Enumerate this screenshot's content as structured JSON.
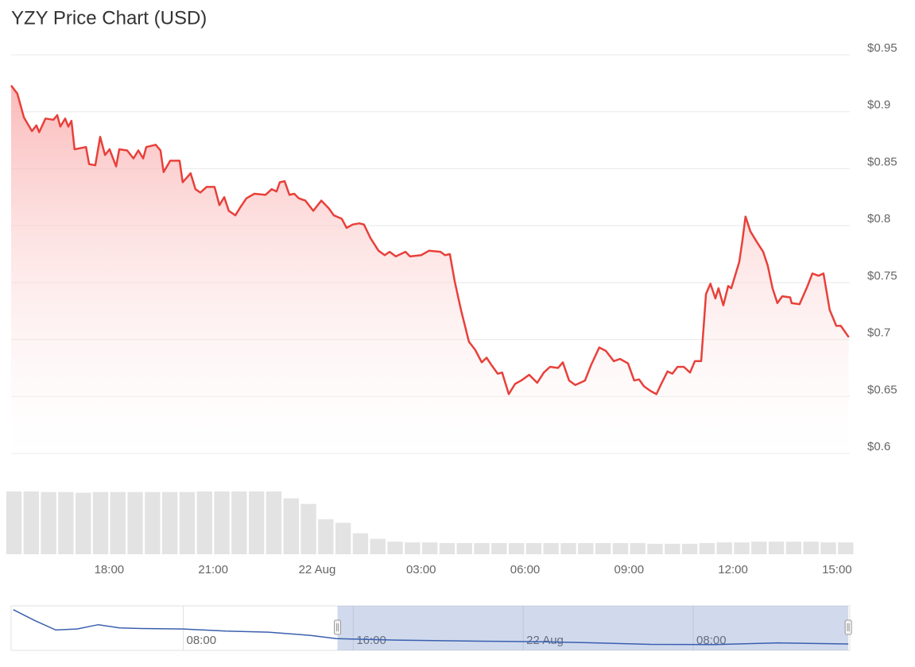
{
  "chart_data": [
    {
      "type": "line",
      "title": "YZY Price Chart (USD)",
      "x": [
        15.17,
        15.35,
        15.54,
        15.77,
        15.9,
        15.98,
        16.16,
        16.39,
        16.5,
        16.59,
        16.73,
        16.82,
        16.91,
        17.0,
        17.33,
        17.42,
        17.6,
        17.74,
        17.88,
        18.01,
        18.2,
        18.29,
        18.52,
        18.7,
        18.84,
        18.98,
        19.07,
        19.34,
        19.48,
        19.57,
        19.76,
        20.03,
        20.12,
        20.35,
        20.49,
        20.63,
        20.81,
        21.04,
        21.18,
        21.32,
        21.45,
        21.64,
        21.78,
        21.96,
        22.19,
        22.51,
        22.69,
        22.83,
        22.92,
        23.06,
        23.2,
        23.34,
        23.47,
        23.66,
        23.89,
        24.12,
        24.34,
        24.48,
        24.71,
        24.85,
        25.03,
        25.22,
        25.35,
        25.54,
        25.77,
        25.95,
        26.09,
        26.27,
        26.55,
        26.68,
        27.0,
        27.23,
        27.56,
        27.69,
        27.83,
        27.97,
        28.15,
        28.38,
        28.56,
        28.75,
        28.89,
        29.02,
        29.21,
        29.34,
        29.53,
        29.71,
        29.89,
        30.12,
        30.35,
        30.54,
        30.72,
        30.95,
        31.09,
        31.27,
        31.45,
        31.73,
        31.91,
        32.14,
        32.33,
        32.56,
        32.74,
        32.97,
        33.15,
        33.29,
        33.43,
        33.61,
        33.79,
        33.93,
        34.11,
        34.25,
        34.4,
        34.58,
        34.76,
        34.9,
        35.08,
        35.22,
        35.35,
        35.49,
        35.58,
        35.72,
        35.86,
        35.95,
        36.18,
        36.27,
        36.36,
        36.5,
        36.68,
        36.87,
        37.0,
        37.14,
        37.28,
        37.42,
        37.65,
        37.69,
        37.92,
        38.15,
        38.29,
        38.47,
        38.61,
        38.79,
        38.98,
        39.11,
        39.34
      ],
      "series": [
        {
          "color": "#e8403a",
          "values": [
            0.923,
            0.916,
            0.895,
            0.883,
            0.888,
            0.882,
            0.894,
            0.893,
            0.897,
            0.887,
            0.894,
            0.887,
            0.892,
            0.867,
            0.869,
            0.854,
            0.853,
            0.878,
            0.862,
            0.867,
            0.852,
            0.867,
            0.866,
            0.859,
            0.866,
            0.859,
            0.869,
            0.871,
            0.866,
            0.847,
            0.857,
            0.857,
            0.838,
            0.846,
            0.832,
            0.829,
            0.834,
            0.834,
            0.818,
            0.825,
            0.813,
            0.809,
            0.816,
            0.824,
            0.828,
            0.827,
            0.832,
            0.83,
            0.838,
            0.839,
            0.827,
            0.828,
            0.824,
            0.822,
            0.813,
            0.822,
            0.815,
            0.809,
            0.806,
            0.798,
            0.801,
            0.802,
            0.801,
            0.789,
            0.778,
            0.774,
            0.777,
            0.773,
            0.777,
            0.773,
            0.774,
            0.778,
            0.777,
            0.774,
            0.775,
            0.751,
            0.726,
            0.698,
            0.691,
            0.68,
            0.684,
            0.678,
            0.67,
            0.671,
            0.652,
            0.661,
            0.664,
            0.669,
            0.662,
            0.671,
            0.676,
            0.675,
            0.68,
            0.664,
            0.66,
            0.664,
            0.678,
            0.693,
            0.69,
            0.681,
            0.683,
            0.679,
            0.664,
            0.665,
            0.659,
            0.655,
            0.652,
            0.661,
            0.672,
            0.67,
            0.676,
            0.676,
            0.671,
            0.681,
            0.681,
            0.74,
            0.749,
            0.736,
            0.745,
            0.73,
            0.747,
            0.745,
            0.768,
            0.787,
            0.808,
            0.795,
            0.786,
            0.777,
            0.765,
            0.745,
            0.732,
            0.738,
            0.737,
            0.732,
            0.731,
            0.747,
            0.758,
            0.756,
            0.758,
            0.726,
            0.712,
            0.712,
            0.702
          ]
        }
      ],
      "xlim": [
        15.17,
        39.37
      ],
      "xticks": [
        {
          "value": 18,
          "label": "18:00"
        },
        {
          "value": 21,
          "label": "21:00"
        },
        {
          "value": 24,
          "label": "22 Aug"
        },
        {
          "value": 27,
          "label": "03:00"
        },
        {
          "value": 30,
          "label": "06:00"
        },
        {
          "value": 33,
          "label": "09:00"
        },
        {
          "value": 36,
          "label": "12:00"
        },
        {
          "value": 39,
          "label": "15:00"
        }
      ],
      "ylim": [
        0.6,
        0.95
      ],
      "yticks": [
        {
          "value": 0.6,
          "label": "$0.6"
        },
        {
          "value": 0.65,
          "label": "$0.65"
        },
        {
          "value": 0.7,
          "label": "$0.7"
        },
        {
          "value": 0.75,
          "label": "$0.75"
        },
        {
          "value": 0.8,
          "label": "$0.8"
        },
        {
          "value": 0.85,
          "label": "$0.85"
        },
        {
          "value": 0.9,
          "label": "$0.9"
        },
        {
          "value": 0.95,
          "label": "$0.95"
        }
      ],
      "grid": true
    },
    {
      "type": "bar",
      "color": "#e3e3e3",
      "x": [
        15.25,
        15.75,
        16.25,
        16.75,
        17.25,
        17.75,
        18.25,
        18.75,
        19.25,
        19.75,
        20.25,
        20.75,
        21.25,
        21.75,
        22.25,
        22.75,
        23.25,
        23.75,
        24.25,
        24.75,
        25.25,
        25.75,
        26.25,
        26.75,
        27.25,
        27.75,
        28.25,
        28.75,
        29.25,
        29.75,
        30.25,
        30.75,
        31.25,
        31.75,
        32.25,
        32.75,
        33.25,
        33.75,
        34.25,
        34.75,
        35.25,
        35.75,
        36.25,
        36.75,
        37.25,
        37.75,
        38.25,
        38.75,
        39.25
      ],
      "values": [
        90,
        90,
        89,
        89,
        88,
        89,
        89,
        89,
        89,
        89,
        89,
        90,
        90,
        90,
        90,
        90,
        80,
        72,
        50,
        45,
        30,
        22,
        18,
        17,
        17,
        16,
        16,
        16,
        16,
        16,
        16,
        16,
        16,
        16,
        16,
        16,
        16,
        15,
        15,
        15,
        16,
        17,
        17,
        18,
        18,
        18,
        18,
        17,
        17
      ],
      "xlim": [
        15.17,
        39.37
      ],
      "ylim": [
        0,
        100
      ]
    },
    {
      "type": "line",
      "color": "#3a5fae",
      "x": [
        0,
        1,
        2,
        3,
        4,
        5,
        6,
        8,
        10,
        12,
        14,
        15.2,
        18,
        22,
        25,
        27,
        30,
        33,
        36,
        39.3
      ],
      "values": [
        2.3,
        1.8,
        1.35,
        1.4,
        1.6,
        1.45,
        1.42,
        1.4,
        1.3,
        1.25,
        1.1,
        0.95,
        0.88,
        0.83,
        0.8,
        0.76,
        0.68,
        0.67,
        0.75,
        0.7
      ],
      "xlim": [
        -0.1,
        39.37
      ],
      "ylim": [
        0.44,
        2.44
      ],
      "xticks": [
        {
          "value": 8,
          "label": "08:00"
        },
        {
          "value": 16,
          "label": "16:00"
        },
        {
          "value": 24,
          "label": "22 Aug"
        },
        {
          "value": 32,
          "label": "08:00"
        }
      ],
      "selection": [
        15.26,
        39.3
      ]
    }
  ]
}
